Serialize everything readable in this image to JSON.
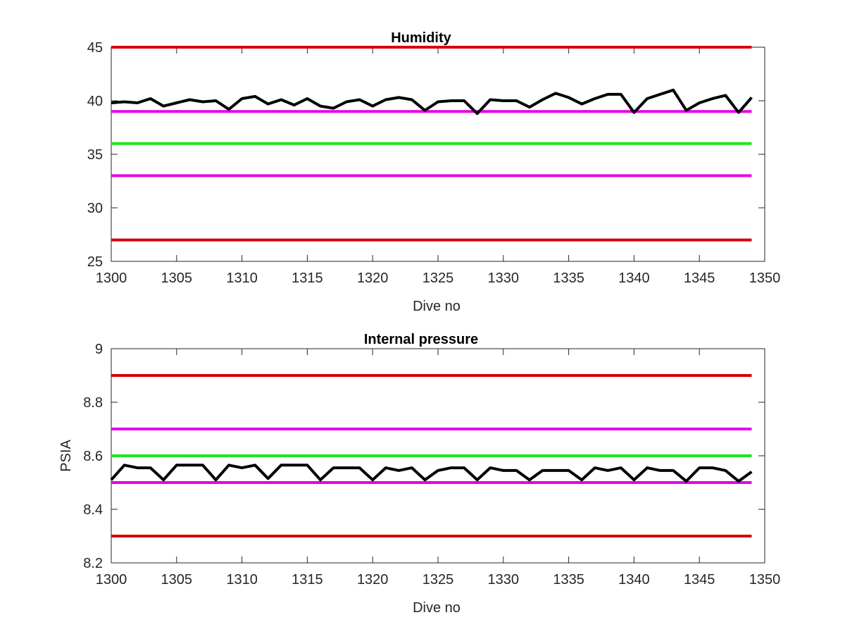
{
  "chart_data": [
    {
      "type": "line",
      "title": "Humidity",
      "xlabel": "Dive no",
      "ylabel": "",
      "xlim": [
        1300,
        1350
      ],
      "ylim": [
        25,
        45
      ],
      "xticks": [
        1300,
        1305,
        1310,
        1315,
        1320,
        1325,
        1330,
        1335,
        1340,
        1345,
        1350
      ],
      "yticks": [
        25,
        30,
        35,
        40,
        45
      ],
      "grid": false,
      "reference_lines": [
        {
          "y": 45,
          "color": "#d40000"
        },
        {
          "y": 39,
          "color": "#e600e6"
        },
        {
          "y": 36,
          "color": "#1ee61e"
        },
        {
          "y": 33,
          "color": "#e600e6"
        },
        {
          "y": 27,
          "color": "#d40000"
        }
      ],
      "series": [
        {
          "color": "#000000",
          "x": [
            1300,
            1301,
            1302,
            1303,
            1304,
            1305,
            1306,
            1307,
            1308,
            1309,
            1310,
            1311,
            1312,
            1313,
            1314,
            1315,
            1316,
            1317,
            1318,
            1319,
            1320,
            1321,
            1322,
            1323,
            1324,
            1325,
            1326,
            1327,
            1328,
            1329,
            1330,
            1331,
            1332,
            1333,
            1334,
            1335,
            1336,
            1337,
            1338,
            1339,
            1340,
            1341,
            1342,
            1343,
            1344,
            1345,
            1346,
            1347,
            1348,
            1349
          ],
          "values": [
            39.8,
            39.9,
            39.8,
            40.2,
            39.5,
            39.8,
            40.1,
            39.9,
            40.0,
            39.2,
            40.2,
            40.4,
            39.7,
            40.1,
            39.6,
            40.2,
            39.5,
            39.3,
            39.9,
            40.1,
            39.5,
            40.1,
            40.3,
            40.1,
            39.1,
            39.9,
            40.0,
            40.0,
            38.8,
            40.1,
            40.0,
            40.0,
            39.4,
            40.1,
            40.7,
            40.3,
            39.7,
            40.2,
            40.6,
            40.6,
            38.9,
            40.2,
            40.6,
            41.0,
            39.1,
            39.8,
            40.2,
            40.5,
            38.9,
            40.3
          ]
        }
      ]
    },
    {
      "type": "line",
      "title": "Internal pressure",
      "xlabel": "Dive no",
      "ylabel": "PSIA",
      "xlim": [
        1300,
        1350
      ],
      "ylim": [
        8.2,
        9
      ],
      "xticks": [
        1300,
        1305,
        1310,
        1315,
        1320,
        1325,
        1330,
        1335,
        1340,
        1345,
        1350
      ],
      "yticks": [
        8.2,
        8.4,
        8.6,
        8.8,
        9
      ],
      "ytick_labels": [
        "8.2",
        "8.4",
        "8.6",
        "8.8",
        "9"
      ],
      "grid": false,
      "reference_lines": [
        {
          "y": 8.9,
          "color": "#d40000"
        },
        {
          "y": 8.7,
          "color": "#e600e6"
        },
        {
          "y": 8.6,
          "color": "#1ee61e"
        },
        {
          "y": 8.5,
          "color": "#e600e6"
        },
        {
          "y": 8.3,
          "color": "#d40000"
        }
      ],
      "series": [
        {
          "color": "#000000",
          "x": [
            1300,
            1301,
            1302,
            1303,
            1304,
            1305,
            1306,
            1307,
            1308,
            1309,
            1310,
            1311,
            1312,
            1313,
            1314,
            1315,
            1316,
            1317,
            1318,
            1319,
            1320,
            1321,
            1322,
            1323,
            1324,
            1325,
            1326,
            1327,
            1328,
            1329,
            1330,
            1331,
            1332,
            1333,
            1334,
            1335,
            1336,
            1337,
            1338,
            1339,
            1340,
            1341,
            1342,
            1343,
            1344,
            1345,
            1346,
            1347,
            1348,
            1349
          ],
          "values": [
            8.51,
            8.565,
            8.555,
            8.555,
            8.51,
            8.565,
            8.565,
            8.565,
            8.51,
            8.565,
            8.555,
            8.565,
            8.515,
            8.565,
            8.565,
            8.565,
            8.51,
            8.555,
            8.555,
            8.555,
            8.51,
            8.555,
            8.545,
            8.555,
            8.51,
            8.545,
            8.555,
            8.555,
            8.51,
            8.555,
            8.545,
            8.545,
            8.51,
            8.545,
            8.545,
            8.545,
            8.51,
            8.555,
            8.545,
            8.555,
            8.51,
            8.555,
            8.545,
            8.545,
            8.505,
            8.555,
            8.555,
            8.545,
            8.505,
            8.54
          ]
        }
      ]
    }
  ]
}
